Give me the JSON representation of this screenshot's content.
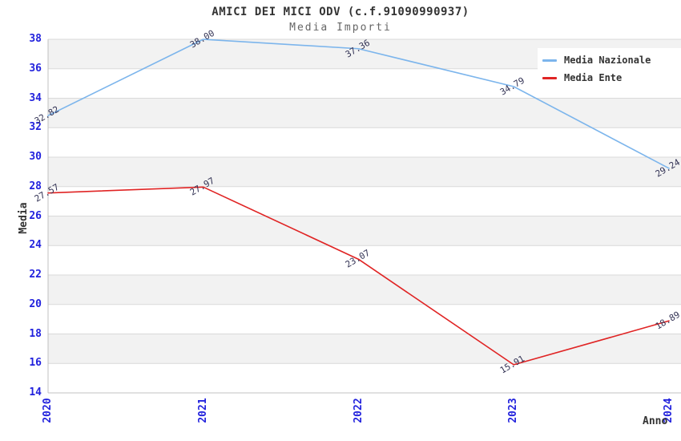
{
  "title": "AMICI DEI MICI ODV (c.f.91090990937)",
  "subtitle": "Media Importi",
  "colors": {
    "national_line": "#7cb5ec",
    "ente_line": "#e02424",
    "tick_label": "#2222dd",
    "data_label": "#333355",
    "grid_band": "#f2f2f2",
    "grid_line": "#d9d9d9",
    "axis_line": "#c0c0c0",
    "title_text": "#333333",
    "subtitle_text": "#666666",
    "legend_bg": "#ffffff"
  },
  "legend": {
    "items": [
      {
        "label": "Media Nazionale",
        "color": "#7cb5ec"
      },
      {
        "label": "Media Ente",
        "color": "#e02424"
      }
    ]
  },
  "chart_data": {
    "type": "line",
    "title": "AMICI DEI MICI ODV (c.f.91090990937)",
    "subtitle": "Media Importi",
    "xlabel": "Anno",
    "ylabel": "Media",
    "x": [
      "2020",
      "2021",
      "2022",
      "2023",
      "2024"
    ],
    "series": [
      {
        "name": "Media Nazionale",
        "color": "#7cb5ec",
        "values": [
          32.82,
          38.0,
          37.36,
          34.79,
          29.24
        ]
      },
      {
        "name": "Media Ente",
        "color": "#e02424",
        "values": [
          27.57,
          27.97,
          23.07,
          15.91,
          18.89
        ]
      }
    ],
    "ylim": [
      14,
      38
    ],
    "yticks": [
      14,
      16,
      18,
      20,
      22,
      24,
      26,
      28,
      30,
      32,
      34,
      36,
      38
    ],
    "grid": true,
    "banded_background": true,
    "legend_position": "top-right",
    "value_label_format": "0.00"
  }
}
